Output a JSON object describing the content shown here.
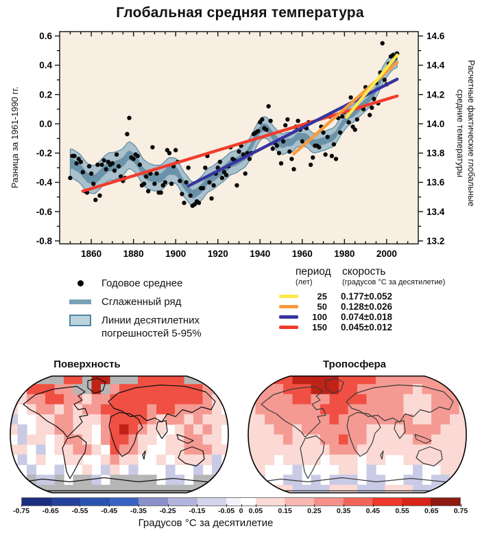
{
  "title": "Глобальная средняя температура",
  "chart_data": {
    "type": "scatter",
    "title": "Глобальная средняя температура",
    "plot_bg": "#f8eee1",
    "x_range": [
      1845,
      2015
    ],
    "x_ticks": [
      1860,
      1880,
      1900,
      1920,
      1940,
      1960,
      1980,
      2000
    ],
    "y_left": {
      "label": "Разница за 1961-1990 гг.",
      "tick_labels": [
        "0.6",
        "0.4",
        "0.2",
        "0.0",
        "-0.2",
        "-0.4",
        "-0.6",
        "-0.8"
      ],
      "range": [
        -0.82,
        0.63
      ]
    },
    "y_right": {
      "label_line1": "Расчетные фактические глобальные",
      "label_line2": "средние температуры",
      "tick_labels": [
        "14.6",
        "14.4",
        "14.2",
        "14.0",
        "13.8",
        "13.6",
        "13.4",
        "13.2"
      ],
      "offset": 14.0
    },
    "annual_series": {
      "name": "Годовое среднее",
      "start_year": 1850,
      "end_year": 2005,
      "values": [
        -0.37,
        -0.22,
        -0.22,
        -0.27,
        -0.24,
        -0.26,
        -0.33,
        -0.46,
        -0.47,
        -0.29,
        -0.34,
        -0.41,
        -0.52,
        -0.28,
        -0.49,
        -0.28,
        -0.25,
        -0.31,
        -0.26,
        -0.28,
        -0.27,
        -0.32,
        -0.21,
        -0.29,
        -0.36,
        -0.39,
        -0.37,
        -0.07,
        0.04,
        -0.23,
        -0.24,
        -0.21,
        -0.22,
        -0.28,
        -0.42,
        -0.41,
        -0.36,
        -0.46,
        -0.34,
        -0.16,
        -0.41,
        -0.34,
        -0.47,
        -0.47,
        -0.42,
        -0.4,
        -0.18,
        -0.2,
        -0.41,
        -0.29,
        -0.18,
        -0.26,
        -0.39,
        -0.48,
        -0.54,
        -0.4,
        -0.3,
        -0.49,
        -0.56,
        -0.55,
        -0.53,
        -0.54,
        -0.44,
        -0.44,
        -0.3,
        -0.22,
        -0.4,
        -0.51,
        -0.42,
        -0.34,
        -0.3,
        -0.26,
        -0.37,
        -0.33,
        -0.35,
        -0.29,
        -0.16,
        -0.24,
        -0.25,
        -0.42,
        -0.19,
        -0.15,
        -0.21,
        -0.34,
        -0.2,
        -0.24,
        -0.2,
        -0.07,
        -0.06,
        -0.05,
        0.01,
        0.03,
        -0.03,
        -0.04,
        0.12,
        0.02,
        -0.17,
        -0.13,
        -0.15,
        -0.2,
        -0.27,
        -0.12,
        -0.01,
        0.03,
        -0.19,
        -0.24,
        -0.31,
        -0.02,
        0.02,
        -0.04,
        -0.12,
        -0.02,
        -0.03,
        0.01,
        -0.28,
        -0.23,
        -0.15,
        -0.15,
        -0.16,
        -0.02,
        -0.06,
        -0.21,
        -0.09,
        0.05,
        -0.22,
        -0.14,
        -0.24,
        0.04,
        -0.06,
        0.05,
        0.08,
        0.12,
        0.01,
        0.18,
        -0.02,
        -0.04,
        0.03,
        0.18,
        0.18,
        0.1,
        0.25,
        0.21,
        0.06,
        0.11,
        0.17,
        0.28,
        0.14,
        0.35,
        0.55,
        0.3,
        0.27,
        0.41,
        0.46,
        0.47,
        0.45,
        0.48
      ]
    },
    "smoothed": {
      "name": "Сглаженный ряд",
      "window": 13,
      "band_name": "Линии десятилетних погрешностей 5-95%",
      "outer_halfwidth": [
        0.1,
        0.055
      ],
      "inner_halfwidth": [
        0.034,
        0.022
      ],
      "line_color": "#6a92a8",
      "band_color": "#a9c0cd",
      "band_edge": "#4e85a3"
    },
    "trends": [
      {
        "period_years": "25",
        "rate_label": "0.177±0.052",
        "color": "#ffe84a",
        "x1": 1981,
        "y1": 0.045,
        "x2": 2005,
        "y2": 0.47
      },
      {
        "period_years": "50",
        "rate_label": "0.128±0.026",
        "color": "#f89a3c",
        "x1": 1956,
        "y1": -0.205,
        "x2": 2005,
        "y2": 0.42
      },
      {
        "period_years": "100",
        "rate_label": "0.074±0.018",
        "color": "#37349e",
        "x1": 1906,
        "y1": -0.425,
        "x2": 2005,
        "y2": 0.305
      },
      {
        "period_years": "150",
        "rate_label": "0.045±0.012",
        "color": "#f03c2d",
        "x1": 1856,
        "y1": -0.46,
        "x2": 2005,
        "y2": 0.19
      }
    ]
  },
  "legend": {
    "items": [
      {
        "label": "Годовое среднее",
        "swatch": "dot",
        "color": "#000000"
      },
      {
        "label": "Сглаженный ряд",
        "swatch": "line",
        "color": "#7aa2b4"
      },
      {
        "label": "Линии десятилетних погрешностей 5-95%",
        "swatch": "box",
        "color": "#bcd4de",
        "edge": "#4e85a3"
      }
    ]
  },
  "trend_table": {
    "col1_title": "период",
    "col1_sub": "(лет)",
    "col2_title": "скорость",
    "col2_sub": "(градусов °C  за десятилетие)"
  },
  "maps": {
    "palette": {
      ".": "#ffffff",
      "g": "#b6b6b6",
      "l": "#c9cae5",
      "p": "#fbd9d4",
      "P": "#f59a93",
      "r": "#f05043",
      "R": "#bf2217"
    },
    "left": {
      "title": "Поверхность",
      "coast_color": "#111111",
      "grid": [
        "ggggggrrgRRgggrrrrrggggg",
        "gprrrPPggRgPrrrrrrrrrPgg",
        "ppPPrrPPpPPrrrrrrrrrrPpp",
        "p.pPPpPpPPrrrrrPrrPPPPp.",
        "l..ppPPpppPrrrrPpPPpPppp",
        "pl.ppPPpp.PrRrPpp.pPpPp.",
        ".lpp.pPPp.PrrPpp.ppPPpp.",
        "pp.l.ppPPp.rPPp..ppPPPpp",
        ".l.p..pp..pPpp..p.ppppl.",
        "l.l..l..p.lp.l...l..l.ll",
        "g.gllg.ggl.ggggg.ll.gggg",
        "gggggggggggggggggggggggg"
      ]
    },
    "right": {
      "title": "Тропосфера",
      "coast_color": "#3a3a3a",
      "grid": [
        "PPrrrRRRRRrrrrPPPPPPPPPP",
        "PPPPrrrRRRrrPPPPPPpPPPPP",
        "PPPPPrrPPrrrrPPPPpppPPPP",
        "pPPPPPPPrrrPPPPPPpppPPPp",
        "ppPPPPPPPrPPPPPPPPppPPpp",
        "pppPPpPPPPPPPppppPPPPppp",
        "ppppPpppPPrPPpppppPPpppp",
        "pppppppppPPPpppppppppppp",
        "ppp.pppp.ppp.pp..ppppppp",
        "pp...l....pp.l....l..ppp",
        "pl..ll.l.lll.ll..ll.llpp",
        "pppppllllppplllppplllppp"
      ]
    }
  },
  "colorbar": {
    "caption": "Градусов °C  за десятилетие",
    "range": [
      -0.75,
      0.75
    ],
    "segments": [
      {
        "from": -0.75,
        "to": -0.65,
        "color": "#1c2f7e"
      },
      {
        "from": -0.65,
        "to": -0.55,
        "color": "#24419b"
      },
      {
        "from": -0.55,
        "to": -0.45,
        "color": "#2c52b0"
      },
      {
        "from": -0.45,
        "to": -0.35,
        "color": "#3a62c4"
      },
      {
        "from": -0.35,
        "to": -0.25,
        "color": "#8b90cb"
      },
      {
        "from": -0.25,
        "to": -0.15,
        "color": "#b2b4dd"
      },
      {
        "from": -0.15,
        "to": -0.05,
        "color": "#d3d4eb"
      },
      {
        "from": -0.05,
        "to": 0,
        "color": "#f2f2f8"
      },
      {
        "from": 0,
        "to": 0.05,
        "color": "#ffffff"
      },
      {
        "from": 0.05,
        "to": 0.15,
        "color": "#fbdad6"
      },
      {
        "from": 0.15,
        "to": 0.25,
        "color": "#f8b7b1"
      },
      {
        "from": 0.25,
        "to": 0.35,
        "color": "#f5918a"
      },
      {
        "from": 0.35,
        "to": 0.45,
        "color": "#f26459"
      },
      {
        "from": 0.45,
        "to": 0.55,
        "color": "#ee382a"
      },
      {
        "from": 0.55,
        "to": 0.65,
        "color": "#d8251a"
      },
      {
        "from": 0.65,
        "to": 0.75,
        "color": "#8e1a12"
      }
    ],
    "tick_labels": [
      "-0.75",
      "-0.65",
      "-0.55",
      "-0.45",
      "-0.35",
      "-0.25",
      "-0.15",
      "-0.05",
      "0",
      "0.05",
      "0.15",
      "0.25",
      "0.35",
      "0.45",
      "0.55",
      "0.65",
      "0.75"
    ]
  }
}
